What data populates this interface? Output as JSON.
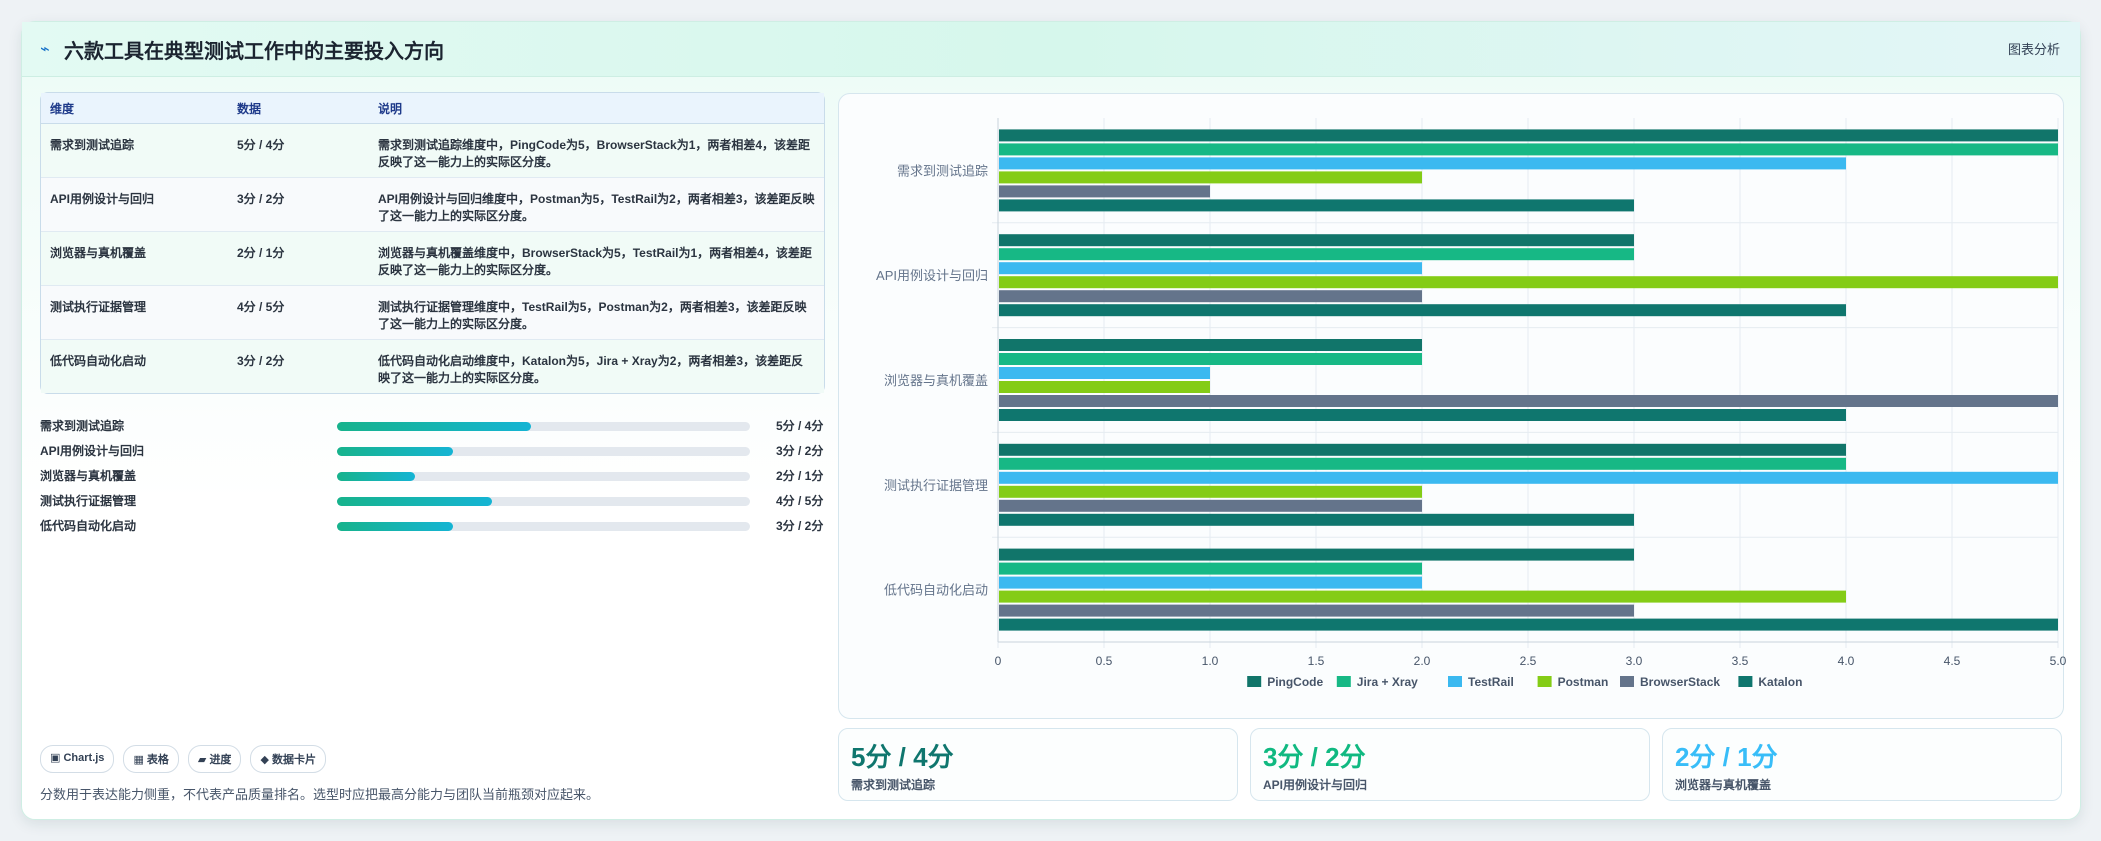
{
  "header": {
    "icon": "bolt-icon",
    "title": "六款工具在典型测试工作中的主要投入方向",
    "tag": "图表分析"
  },
  "table": {
    "headers": [
      "维度",
      "数据",
      "说明"
    ],
    "rows": [
      {
        "dim": "需求到测试追踪",
        "data": "5分 / 4分",
        "desc": "需求到测试追踪维度中，PingCode为5，BrowserStack为1，两者相差4，该差距反映了这一能力上的实际区分度。"
      },
      {
        "dim": "API用例设计与回归",
        "data": "3分 / 2分",
        "desc": "API用例设计与回归维度中，Postman为5，TestRail为2，两者相差3，该差距反映了这一能力上的实际区分度。"
      },
      {
        "dim": "浏览器与真机覆盖",
        "data": "2分 / 1分",
        "desc": "浏览器与真机覆盖维度中，BrowserStack为5，TestRail为1，两者相差4，该差距反映了这一能力上的实际区分度。"
      },
      {
        "dim": "测试执行证据管理",
        "data": "4分 / 5分",
        "desc": "测试执行证据管理维度中，TestRail为5，Postman为2，两者相差3，该差距反映了这一能力上的实际区分度。"
      },
      {
        "dim": "低代码自动化启动",
        "data": "3分 / 2分",
        "desc": "低代码自动化启动维度中，Katalon为5，Jira + Xray为2，两者相差3，该差距反映了这一能力上的实际区分度。"
      }
    ]
  },
  "progress": [
    {
      "label": "需求到测试追踪",
      "value": "5分 / 4分",
      "fill_percent": 47
    },
    {
      "label": "API用例设计与回归",
      "value": "3分 / 2分",
      "fill_percent": 28
    },
    {
      "label": "浏览器与真机覆盖",
      "value": "2分 / 1分",
      "fill_percent": 19
    },
    {
      "label": "测试执行证据管理",
      "value": "4分 / 5分",
      "fill_percent": 37.5
    },
    {
      "label": "低代码自动化启动",
      "value": "3分 / 2分",
      "fill_percent": 28
    }
  ],
  "chips": [
    {
      "icon": "chart-icon",
      "glyph": "▣",
      "label": "Chart.js"
    },
    {
      "icon": "table-icon",
      "glyph": "▦",
      "label": "表格"
    },
    {
      "icon": "progress-icon",
      "glyph": "▰",
      "label": "进度"
    },
    {
      "icon": "card-icon",
      "glyph": "◆",
      "label": "数据卡片"
    }
  ],
  "note": "分数用于表达能力侧重，不代表产品质量排名。选型时应把最高分能力与团队当前瓶颈对应起来。",
  "kpis": [
    {
      "value": "5分 / 4分",
      "label": "需求到测试追踪",
      "color": "#0f766e"
    },
    {
      "value": "3分 / 2分",
      "label": "API用例设计与回归",
      "color": "#10b981"
    },
    {
      "value": "2分 / 1分",
      "label": "浏览器与真机覆盖",
      "color": "#38bdf8"
    }
  ],
  "chart_data": {
    "type": "bar",
    "orientation": "horizontal",
    "categories": [
      "需求到测试追踪",
      "API用例设计与回归",
      "浏览器与真机覆盖",
      "测试执行证据管理",
      "低代码自动化启动"
    ],
    "series": [
      {
        "name": "PingCode",
        "color": "#11756a",
        "values": [
          5,
          3,
          2,
          4,
          3
        ]
      },
      {
        "name": "Jira + Xray",
        "color": "#17b885",
        "values": [
          5,
          3,
          2,
          4,
          2
        ]
      },
      {
        "name": "TestRail",
        "color": "#3bb9f0",
        "values": [
          4,
          2,
          1,
          5,
          2
        ]
      },
      {
        "name": "Postman",
        "color": "#84cc16",
        "values": [
          2,
          5,
          1,
          2,
          4
        ]
      },
      {
        "name": "BrowserStack",
        "color": "#64748b",
        "values": [
          1,
          2,
          5,
          2,
          3
        ]
      },
      {
        "name": "Katalon",
        "color": "#0f766e",
        "values": [
          3,
          4,
          4,
          3,
          5
        ]
      }
    ],
    "xlim": [
      0,
      5
    ],
    "xticks": [
      "0",
      "0.5",
      "1.0",
      "1.5",
      "2.0",
      "2.5",
      "3.0",
      "3.5",
      "4.0",
      "4.5",
      "5.0"
    ],
    "grid": true,
    "legend": "bottom"
  }
}
